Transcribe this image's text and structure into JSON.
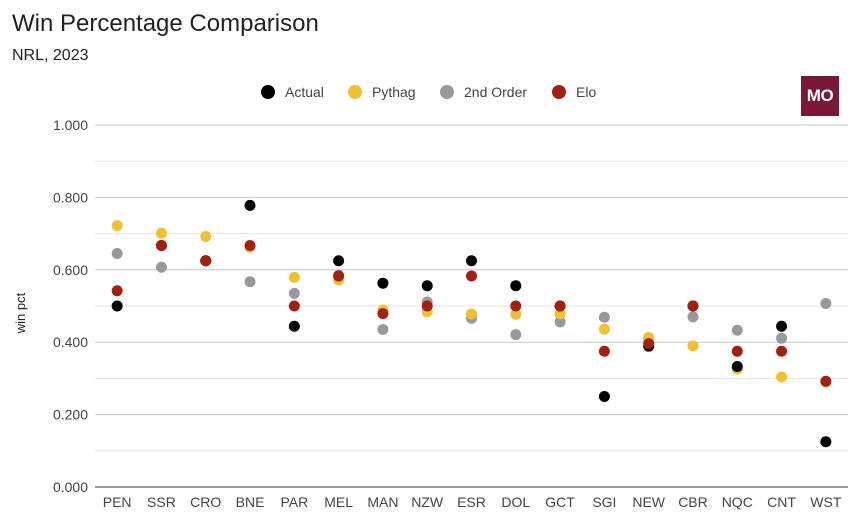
{
  "header": {
    "title": "Win Percentage Comparison",
    "subtitle": "NRL, 2023",
    "logo_text": "MO"
  },
  "colors": {
    "actual": "#000000",
    "pythag": "#f0c030",
    "second_order": "#999999",
    "elo": "#a32010",
    "logo_bg": "#7b1838",
    "grid": "#d0d0d0"
  },
  "chart_data": {
    "type": "scatter",
    "title": "Win Percentage Comparison",
    "subtitle": "NRL, 2023",
    "xlabel": "",
    "ylabel": "win pct",
    "ylim": [
      0,
      1
    ],
    "yticks": [
      "1.000",
      "0.800",
      "0.600",
      "0.400",
      "0.200",
      "0.000"
    ],
    "grid": true,
    "legend_position": "top",
    "categories": [
      "PEN",
      "SSR",
      "CRO",
      "BNE",
      "PAR",
      "MEL",
      "MAN",
      "NZW",
      "ESR",
      "DOL",
      "GCT",
      "SGI",
      "NEW",
      "CBR",
      "NQC",
      "CNT",
      "WST"
    ],
    "series": [
      {
        "name": "Actual",
        "color": "#000000",
        "values": [
          0.5,
          0.667,
          0.625,
          0.778,
          0.444,
          0.625,
          0.563,
          0.556,
          0.625,
          0.556,
          0.5,
          0.25,
          0.389,
          0.5,
          0.333,
          0.444,
          0.125
        ]
      },
      {
        "name": "Pythag",
        "color": "#f0c030",
        "values": [
          0.722,
          0.701,
          0.692,
          0.662,
          0.579,
          0.572,
          0.489,
          0.484,
          0.478,
          0.477,
          0.478,
          0.436,
          0.413,
          0.39,
          0.326,
          0.304,
          0.29
        ]
      },
      {
        "name": "2nd Order",
        "color": "#999999",
        "values": [
          0.645,
          0.607,
          0.625,
          0.567,
          0.535,
          0.585,
          0.435,
          0.511,
          0.466,
          0.421,
          0.456,
          0.469,
          0.41,
          0.47,
          0.433,
          0.411,
          0.507
        ]
      },
      {
        "name": "Elo",
        "color": "#a32010",
        "values": [
          0.542,
          0.667,
          0.625,
          0.667,
          0.5,
          0.583,
          0.479,
          0.5,
          0.583,
          0.5,
          0.5,
          0.375,
          0.396,
          0.5,
          0.375,
          0.375,
          0.292
        ]
      }
    ]
  }
}
